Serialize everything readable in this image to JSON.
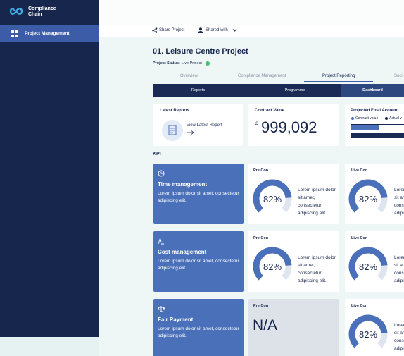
{
  "sidebar": {
    "brand": "Compliance Chain",
    "menu": [
      "Project Management"
    ]
  },
  "toolbar": {
    "share": "Share Project",
    "shared_with": "Shared with"
  },
  "project": {
    "title": "01. Leisure Centre Project",
    "status_label": "Project Status:",
    "status": "Live Project"
  },
  "tabs": [
    "Overview",
    "Compliance Management",
    "Project Reporting",
    "Soci"
  ],
  "subtabs": [
    "Reports",
    "Programme",
    "Dashboard"
  ],
  "summary": {
    "latest_reports": {
      "title": "Latest Reports",
      "link": "View Latest Report"
    },
    "contract_value": {
      "title": "Contract Value",
      "currency": "£",
      "amount": "999,092"
    },
    "projected": {
      "title": "Projected Final Account",
      "legend": [
        "Contract value",
        "Actual v"
      ]
    }
  },
  "kpi": {
    "title": "KPI",
    "rows": [
      {
        "title": "Time management",
        "text": "Lorem ipsum dolor sit amet, consectetur adipiscing elit.",
        "pre_con": {
          "label": "Pre Con",
          "value": 82,
          "value_label": "82%",
          "text": "Lorem ipsum dolor sit amet, consectetur adipiscing elit."
        },
        "live_con": {
          "label": "Live Con",
          "value": 82,
          "value_label": "82%",
          "text": "Lorem ipsum dolor sit amet, consectetur adipiscing elit."
        }
      },
      {
        "title": "Cost management",
        "text": "Lorem ipsum dolor sit amet, consectetur adipiscing elit.",
        "pre_con": {
          "label": "Pre Con",
          "value": 82,
          "value_label": "82%",
          "text": "Lorem ipsum dolor sit amet, consectetur adipiscing elit."
        },
        "live_con": {
          "label": "Live Con",
          "value": 82,
          "value_label": "82%",
          "text": "Lorem ipsum dolor sit amet, consectetur adipiscing elit."
        }
      },
      {
        "title": "Fair Payment",
        "text": "Lorem ipsum dolor sit amet, consectetur adipiscing elit.",
        "pre_con": {
          "label": "Pre Con",
          "na": "N/A"
        },
        "live_con": {
          "label": "Live Con",
          "value": 82,
          "value_label": "82%",
          "text": "Lorem ipsum dolor sit amet, consectetur adipiscing elit."
        }
      }
    ]
  }
}
